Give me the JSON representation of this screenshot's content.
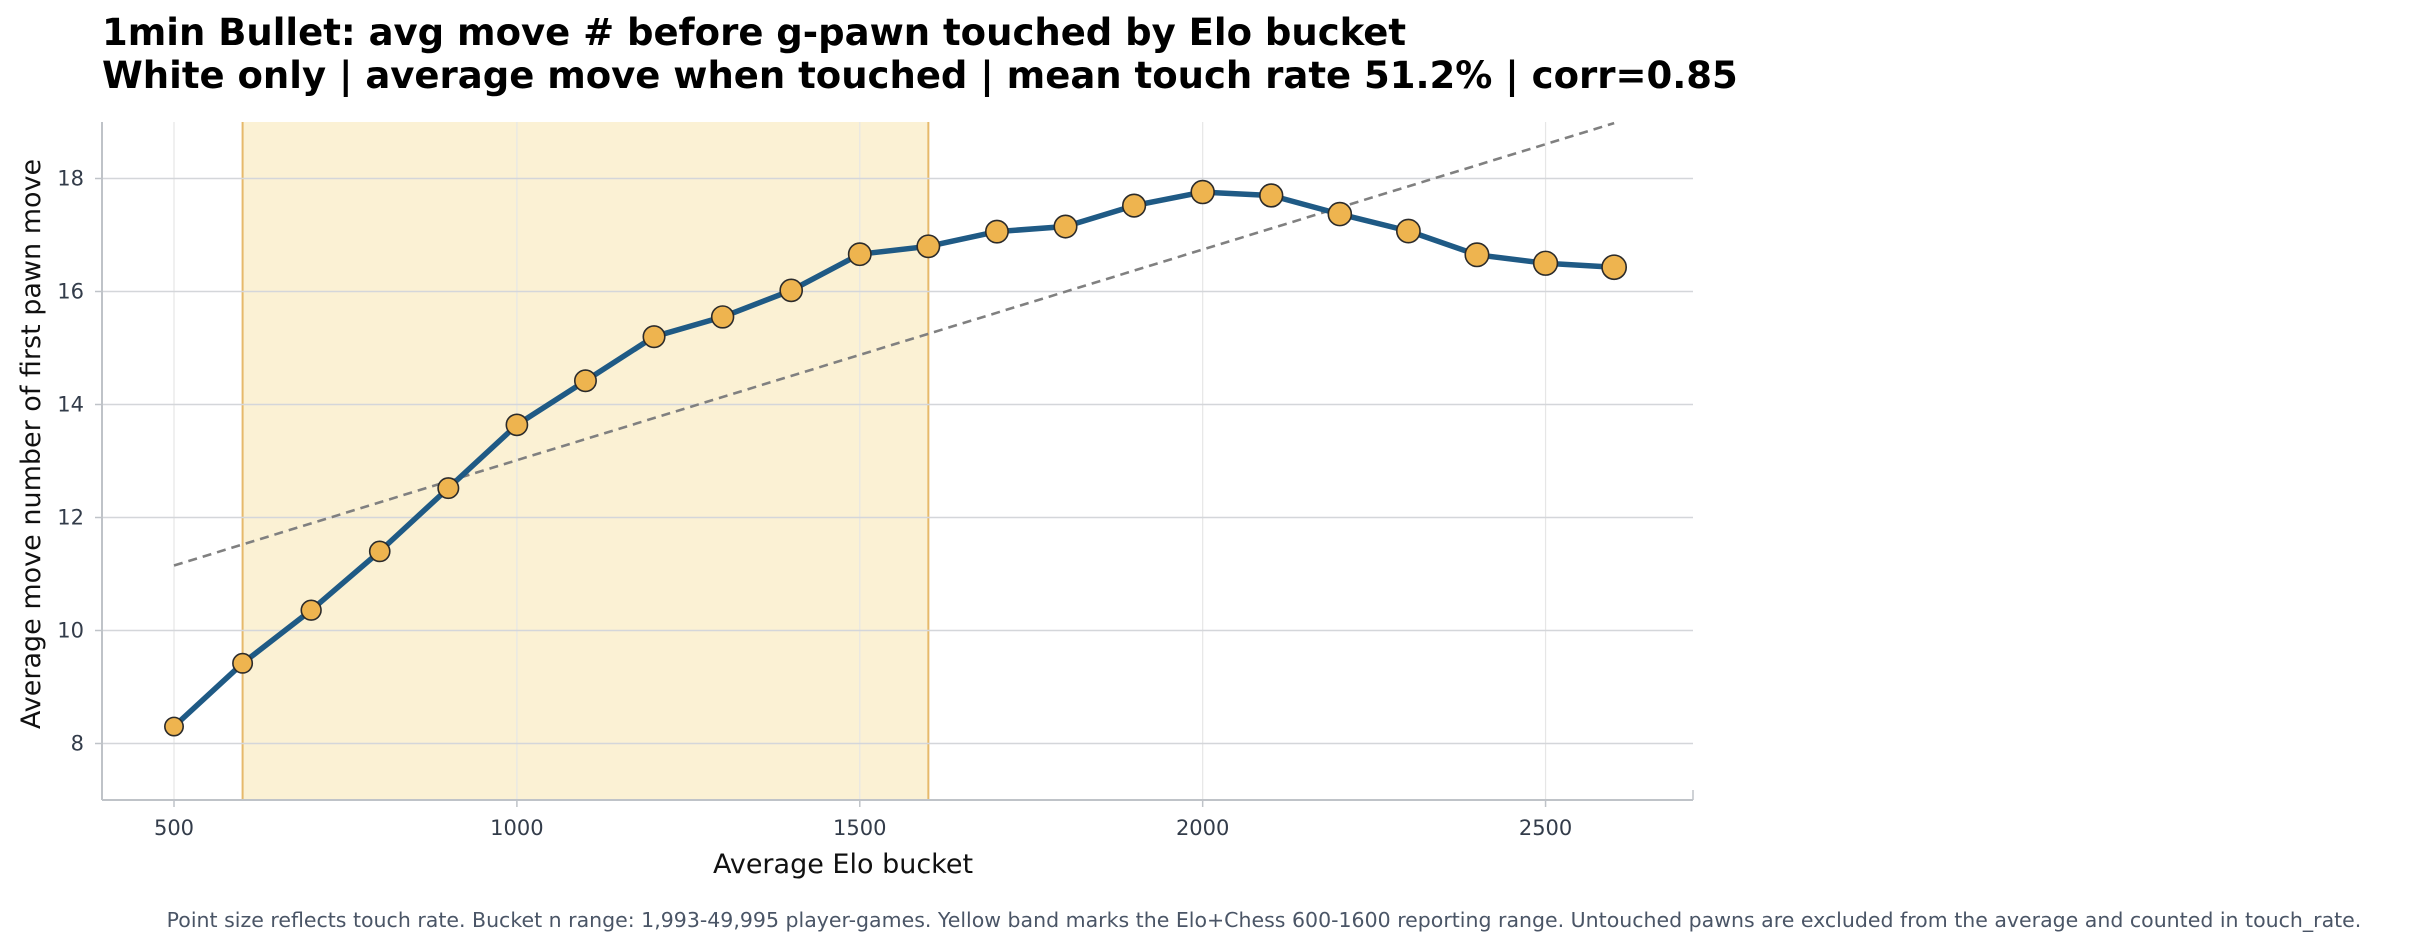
{
  "chart_data": {
    "type": "line",
    "title": "1min Bullet: avg move # before g-pawn touched by Elo bucket",
    "subtitle": "White only | average move when touched | mean touch rate 51.2% | corr=0.85",
    "xlabel": "Average Elo bucket",
    "ylabel": "Average move number of first pawn move",
    "xlim": [
      395,
      2715
    ],
    "ylim": [
      7.0,
      19.0
    ],
    "x_ticks": [
      500,
      1000,
      1500,
      2000,
      2500
    ],
    "y_ticks": [
      8,
      10,
      12,
      14,
      16,
      18
    ],
    "grid": true,
    "shaded_band": {
      "x_start": 600,
      "x_end": 1600,
      "color": "#fbf1d4",
      "edge_color": "#e6b96b"
    },
    "trend_line": {
      "x": [
        500,
        2600
      ],
      "y": [
        11.15,
        18.98
      ],
      "color": "#808080",
      "style": "dashed"
    },
    "series": [
      {
        "x": [
          500,
          600,
          700,
          800,
          900,
          1000,
          1100,
          1200,
          1300,
          1400,
          1500,
          1600,
          1700,
          1800,
          1900,
          2000,
          2100,
          2200,
          2300,
          2400,
          2500,
          2600
        ],
        "y": [
          8.3,
          9.42,
          10.36,
          11.4,
          12.52,
          13.64,
          14.42,
          15.2,
          15.55,
          16.02,
          16.66,
          16.8,
          17.06,
          17.15,
          17.52,
          17.76,
          17.7,
          17.37,
          17.07,
          16.65,
          16.5,
          16.43
        ],
        "touch_rate_relative": [
          0.05,
          0.2,
          0.25,
          0.3,
          0.35,
          0.45,
          0.48,
          0.5,
          0.55,
          0.58,
          0.62,
          0.62,
          0.62,
          0.64,
          0.66,
          0.7,
          0.68,
          0.72,
          0.75,
          0.78,
          0.82,
          0.88
        ],
        "line_color": "#1f5a85",
        "marker_color": "#eeb44f",
        "marker_edge": "#2b2b2b"
      }
    ],
    "footnote": "Point size reflects touch rate. Bucket n range: 1,993-49,995 player-games. Yellow band marks the Elo+Chess 600-1600 reporting range. Untouched pawns are excluded from the average and counted in touch_rate."
  }
}
